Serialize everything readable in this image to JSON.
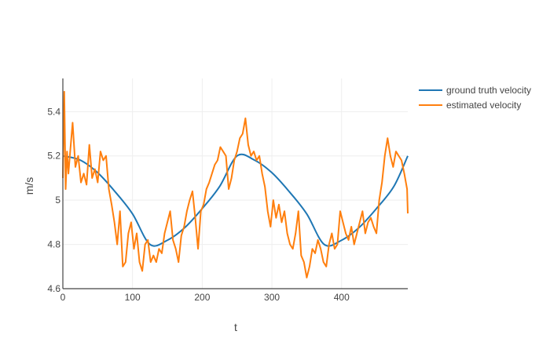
{
  "chart_data": {
    "type": "line",
    "title": "",
    "xlabel": "t",
    "ylabel": "m/s",
    "xlim": [
      0,
      495
    ],
    "ylim": [
      4.6,
      5.55
    ],
    "x_ticks": [
      0,
      100,
      200,
      300,
      400
    ],
    "y_ticks": [
      4.6,
      4.8,
      5,
      5.2,
      5.4
    ],
    "x_tick_labels": [
      "0",
      "100",
      "200",
      "300",
      "400"
    ],
    "y_tick_labels": [
      "4.6",
      "4.8",
      "5",
      "5.2",
      "5.4"
    ],
    "grid": true,
    "legend_position": "top-right",
    "series": [
      {
        "name": "ground truth velocity",
        "color": "#1f77b4",
        "x": [
          0,
          25,
          50,
          75,
          100,
          125,
          150,
          175,
          200,
          225,
          250,
          275,
          300,
          325,
          350,
          375,
          400,
          425,
          450,
          475,
          495
        ],
        "y": [
          5.2,
          5.181,
          5.124,
          5.038,
          4.938,
          4.8,
          4.819,
          4.876,
          4.962,
          5.062,
          5.2,
          5.181,
          5.124,
          5.038,
          4.938,
          4.8,
          4.819,
          4.876,
          4.962,
          5.062,
          5.2
        ]
      },
      {
        "name": "estimated velocity",
        "color": "#ff7f0e",
        "x": [
          0,
          2,
          4,
          6,
          8,
          10,
          14,
          18,
          22,
          26,
          30,
          34,
          38,
          42,
          46,
          50,
          54,
          58,
          62,
          66,
          70,
          74,
          78,
          82,
          86,
          90,
          94,
          98,
          102,
          106,
          110,
          114,
          118,
          122,
          126,
          130,
          134,
          138,
          142,
          146,
          150,
          154,
          158,
          162,
          166,
          170,
          174,
          178,
          182,
          186,
          190,
          194,
          198,
          202,
          206,
          210,
          214,
          218,
          222,
          226,
          230,
          234,
          238,
          242,
          246,
          250,
          254,
          258,
          262,
          266,
          270,
          274,
          278,
          282,
          286,
          290,
          294,
          298,
          302,
          306,
          310,
          314,
          318,
          322,
          326,
          330,
          334,
          338,
          342,
          346,
          350,
          354,
          358,
          362,
          366,
          370,
          374,
          378,
          382,
          386,
          390,
          394,
          398,
          402,
          406,
          410,
          414,
          418,
          422,
          426,
          430,
          434,
          438,
          442,
          446,
          450,
          454,
          458,
          462,
          466,
          470,
          474,
          478,
          482,
          486,
          490,
          494,
          495
        ],
        "y": [
          5.1,
          5.49,
          5.05,
          5.22,
          5.12,
          5.2,
          5.35,
          5.15,
          5.2,
          5.08,
          5.12,
          5.07,
          5.25,
          5.1,
          5.14,
          5.08,
          5.22,
          5.18,
          5.2,
          5.05,
          4.98,
          4.9,
          4.8,
          4.95,
          4.7,
          4.72,
          4.85,
          4.9,
          4.78,
          4.85,
          4.72,
          4.68,
          4.8,
          4.82,
          4.72,
          4.75,
          4.72,
          4.78,
          4.76,
          4.85,
          4.9,
          4.95,
          4.82,
          4.78,
          4.72,
          4.84,
          4.88,
          4.95,
          5.0,
          5.04,
          4.92,
          4.78,
          4.95,
          4.98,
          5.05,
          5.08,
          5.12,
          5.16,
          5.18,
          5.24,
          5.22,
          5.2,
          5.05,
          5.1,
          5.18,
          5.22,
          5.28,
          5.3,
          5.37,
          5.25,
          5.2,
          5.22,
          5.18,
          5.2,
          5.12,
          5.06,
          4.95,
          4.88,
          5.0,
          4.92,
          4.98,
          4.9,
          4.95,
          4.85,
          4.8,
          4.78,
          4.85,
          4.95,
          4.75,
          4.72,
          4.65,
          4.7,
          4.78,
          4.76,
          4.82,
          4.78,
          4.72,
          4.7,
          4.8,
          4.85,
          4.78,
          4.8,
          4.95,
          4.9,
          4.85,
          4.82,
          4.88,
          4.8,
          4.85,
          4.9,
          4.95,
          4.85,
          4.9,
          4.92,
          4.88,
          4.85,
          5.0,
          5.08,
          5.2,
          5.28,
          5.2,
          5.15,
          5.22,
          5.2,
          5.18,
          5.12,
          5.05,
          4.94
        ]
      }
    ]
  }
}
